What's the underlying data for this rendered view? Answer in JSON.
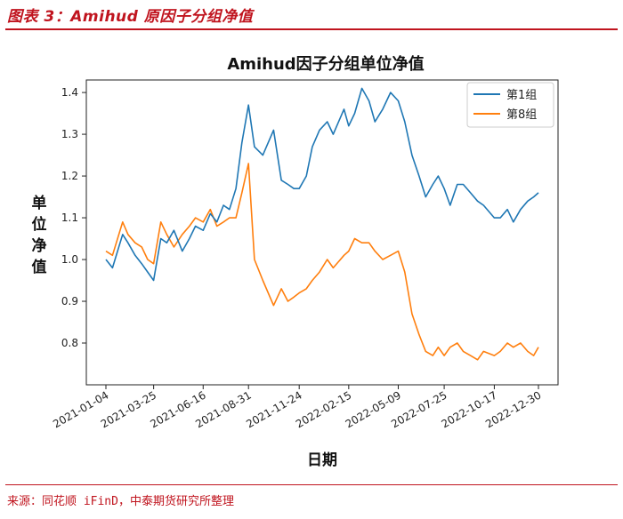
{
  "figure_caption": "图表 3：Amihud 原因子分组净值",
  "source_note": "来源：同花顺 iFinD，中泰期货研究所整理",
  "colors": {
    "accent": "#c0141e",
    "series1": "#1f77b4",
    "series2": "#ff7f0e"
  },
  "chart_data": {
    "type": "line",
    "title": "Amihud因子分组单位净值",
    "xlabel": "日期",
    "ylabel": "单位净值",
    "xlim": [
      "2021-01-04",
      "2022-12-30"
    ],
    "ylim": [
      0.7,
      1.43
    ],
    "x_ticks": [
      "2021-01-04",
      "2021-03-25",
      "2021-06-16",
      "2021-08-31",
      "2021-11-24",
      "2022-02-15",
      "2022-05-09",
      "2022-07-25",
      "2022-10-17",
      "2022-12-30"
    ],
    "y_ticks": [
      "0.8",
      "0.9",
      "1.0",
      "1.1",
      "1.2",
      "1.3",
      "1.4"
    ],
    "legend_position": "top-right",
    "series": [
      {
        "name": "第1组",
        "x": [
          "2021-01-04",
          "2021-01-15",
          "2021-02-01",
          "2021-02-10",
          "2021-02-22",
          "2021-03-05",
          "2021-03-15",
          "2021-03-25",
          "2021-04-06",
          "2021-04-16",
          "2021-04-28",
          "2021-05-12",
          "2021-05-24",
          "2021-06-03",
          "2021-06-16",
          "2021-06-28",
          "2021-07-09",
          "2021-07-20",
          "2021-07-30",
          "2021-08-10",
          "2021-08-20",
          "2021-08-31",
          "2021-09-10",
          "2021-09-24",
          "2021-10-12",
          "2021-10-25",
          "2021-11-05",
          "2021-11-15",
          "2021-11-24",
          "2021-12-06",
          "2021-12-16",
          "2021-12-28",
          "2022-01-10",
          "2022-01-20",
          "2022-02-07",
          "2022-02-15",
          "2022-02-25",
          "2022-03-09",
          "2022-03-21",
          "2022-03-31",
          "2022-04-13",
          "2022-04-26",
          "2022-05-09",
          "2022-05-20",
          "2022-06-01",
          "2022-06-13",
          "2022-06-24",
          "2022-07-06",
          "2022-07-15",
          "2022-07-25",
          "2022-08-04",
          "2022-08-16",
          "2022-08-26",
          "2022-09-07",
          "2022-09-19",
          "2022-09-29",
          "2022-10-17",
          "2022-10-27",
          "2022-11-08",
          "2022-11-18",
          "2022-11-30",
          "2022-12-12",
          "2022-12-22",
          "2022-12-30"
        ],
        "values": [
          1.0,
          0.98,
          1.06,
          1.04,
          1.01,
          0.99,
          0.97,
          0.95,
          1.05,
          1.04,
          1.07,
          1.02,
          1.05,
          1.08,
          1.07,
          1.11,
          1.09,
          1.13,
          1.12,
          1.17,
          1.28,
          1.37,
          1.27,
          1.25,
          1.31,
          1.19,
          1.18,
          1.17,
          1.17,
          1.2,
          1.27,
          1.31,
          1.33,
          1.3,
          1.36,
          1.32,
          1.35,
          1.41,
          1.38,
          1.33,
          1.36,
          1.4,
          1.38,
          1.33,
          1.25,
          1.2,
          1.15,
          1.18,
          1.2,
          1.17,
          1.13,
          1.18,
          1.18,
          1.16,
          1.14,
          1.13,
          1.1,
          1.1,
          1.12,
          1.09,
          1.12,
          1.14,
          1.15,
          1.16
        ]
      },
      {
        "name": "第8组",
        "x": [
          "2021-01-04",
          "2021-01-15",
          "2021-02-01",
          "2021-02-10",
          "2021-02-22",
          "2021-03-05",
          "2021-03-15",
          "2021-03-25",
          "2021-04-06",
          "2021-04-16",
          "2021-04-28",
          "2021-05-12",
          "2021-05-24",
          "2021-06-03",
          "2021-06-16",
          "2021-06-28",
          "2021-07-09",
          "2021-07-20",
          "2021-07-30",
          "2021-08-10",
          "2021-08-20",
          "2021-08-31",
          "2021-09-10",
          "2021-09-24",
          "2021-10-12",
          "2021-10-25",
          "2021-11-05",
          "2021-11-15",
          "2021-11-24",
          "2021-12-06",
          "2021-12-16",
          "2021-12-28",
          "2022-01-10",
          "2022-01-20",
          "2022-02-07",
          "2022-02-15",
          "2022-02-25",
          "2022-03-09",
          "2022-03-21",
          "2022-03-31",
          "2022-04-13",
          "2022-04-26",
          "2022-05-09",
          "2022-05-20",
          "2022-06-01",
          "2022-06-13",
          "2022-06-24",
          "2022-07-06",
          "2022-07-15",
          "2022-07-25",
          "2022-08-04",
          "2022-08-16",
          "2022-08-26",
          "2022-09-07",
          "2022-09-19",
          "2022-09-29",
          "2022-10-17",
          "2022-10-27",
          "2022-11-08",
          "2022-11-18",
          "2022-11-30",
          "2022-12-12",
          "2022-12-22",
          "2022-12-30"
        ],
        "values": [
          1.02,
          1.01,
          1.09,
          1.06,
          1.04,
          1.03,
          1.0,
          0.99,
          1.09,
          1.06,
          1.03,
          1.06,
          1.08,
          1.1,
          1.09,
          1.12,
          1.08,
          1.09,
          1.1,
          1.1,
          1.16,
          1.23,
          1.0,
          0.95,
          0.89,
          0.93,
          0.9,
          0.91,
          0.92,
          0.93,
          0.95,
          0.97,
          1.0,
          0.98,
          1.01,
          1.02,
          1.05,
          1.04,
          1.04,
          1.02,
          1.0,
          1.01,
          1.02,
          0.97,
          0.87,
          0.82,
          0.78,
          0.77,
          0.79,
          0.77,
          0.79,
          0.8,
          0.78,
          0.77,
          0.76,
          0.78,
          0.77,
          0.78,
          0.8,
          0.79,
          0.8,
          0.78,
          0.77,
          0.79
        ]
      }
    ]
  }
}
